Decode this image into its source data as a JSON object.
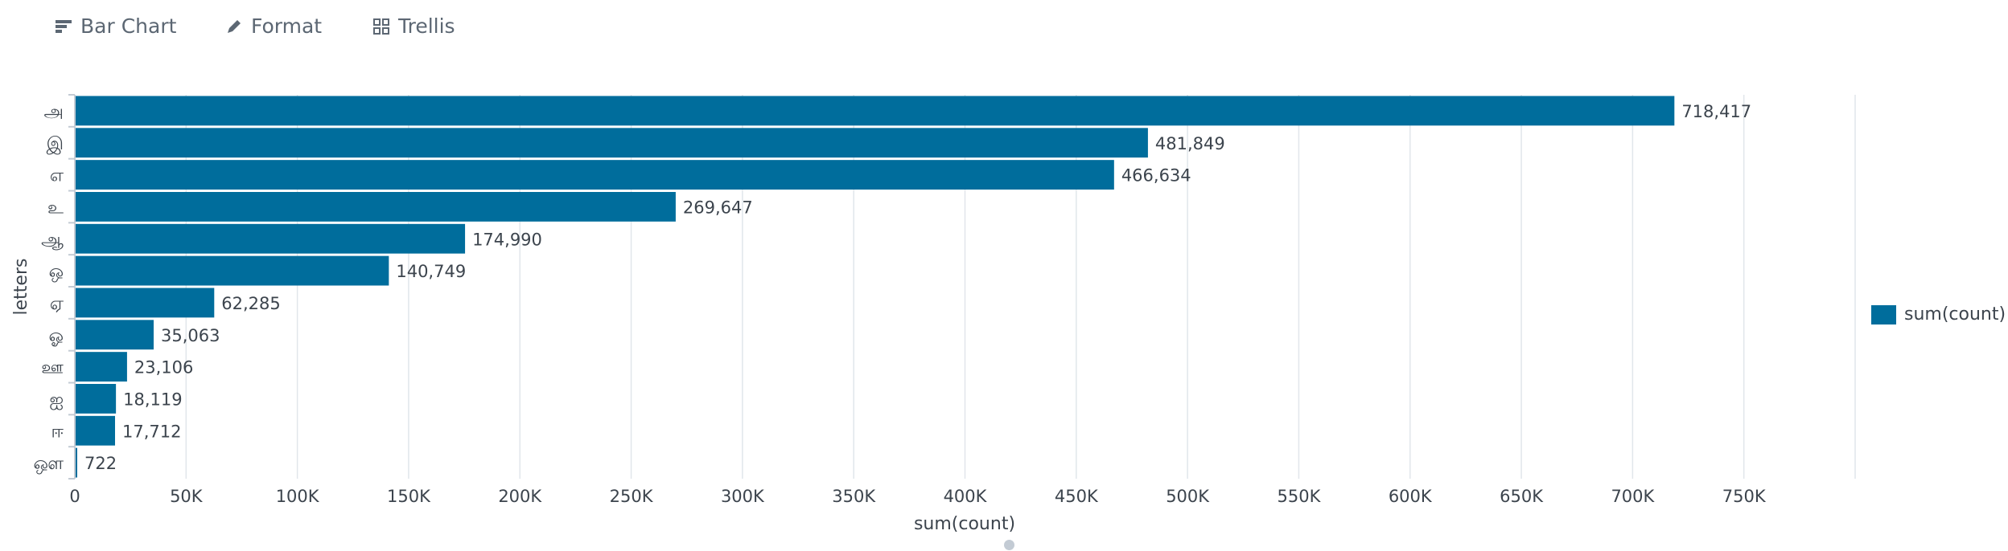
{
  "toolbar": {
    "bar_chart_label": "Bar Chart",
    "format_label": "Format",
    "trellis_label": "Trellis"
  },
  "colors": {
    "bar": "#006d9c",
    "grid": "#e1e6eb",
    "axis": "#c3cbd4"
  },
  "legend": {
    "label": "sum(count)"
  },
  "chart_data": {
    "type": "bar",
    "orientation": "horizontal",
    "categories": [
      "அ",
      "இ",
      "எ",
      "உ",
      "ஆ",
      "ஒ",
      "ஏ",
      "ஓ",
      "ஊ",
      "ஐ",
      "ஈ",
      "ஔ"
    ],
    "series": [
      {
        "name": "sum(count)",
        "values": [
          718417,
          481849,
          466634,
          269647,
          174990,
          140749,
          62285,
          35063,
          23106,
          18119,
          17712,
          722
        ]
      }
    ],
    "value_labels": [
      "718,417",
      "481,849",
      "466,634",
      "269,647",
      "174,990",
      "140,749",
      "62,285",
      "35,063",
      "23,106",
      "18,119",
      "17,712",
      "722"
    ],
    "xlabel": "sum(count)",
    "ylabel": "letters",
    "xlim": [
      0,
      800000
    ],
    "xticks": [
      0,
      50000,
      100000,
      150000,
      200000,
      250000,
      300000,
      350000,
      400000,
      450000,
      500000,
      550000,
      600000,
      650000,
      700000,
      750000
    ],
    "xtick_labels": [
      "0",
      "50K",
      "100K",
      "150K",
      "200K",
      "250K",
      "300K",
      "350K",
      "400K",
      "450K",
      "500K",
      "550K",
      "600K",
      "650K",
      "700K",
      "750K"
    ],
    "grid": true,
    "legend_position": "right"
  }
}
